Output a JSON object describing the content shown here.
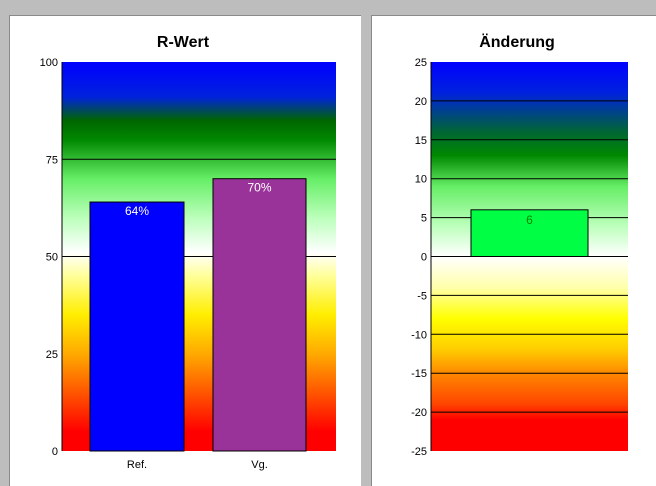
{
  "chart_data": [
    {
      "type": "bar",
      "title": "R-Wert",
      "categories": [
        "Ref.",
        "Vg."
      ],
      "values": [
        64,
        70
      ],
      "value_labels": [
        "64%",
        "70%"
      ],
      "bar_colors": [
        "#0000ff",
        "#993399"
      ],
      "ylim": [
        0,
        100
      ],
      "yticks": [
        0,
        25,
        50,
        75,
        100
      ],
      "gridlines": [
        50,
        75
      ],
      "background_gradient": [
        {
          "v": 100,
          "c": "#0000ff"
        },
        {
          "v": 91,
          "c": "#0022dd"
        },
        {
          "v": 85,
          "c": "#006600"
        },
        {
          "v": 80,
          "c": "#008800"
        },
        {
          "v": 70,
          "c": "#66ee66"
        },
        {
          "v": 60,
          "c": "#bbffbb"
        },
        {
          "v": 51,
          "c": "#ffffff"
        },
        {
          "v": 45,
          "c": "#ffff99"
        },
        {
          "v": 35,
          "c": "#ffee00"
        },
        {
          "v": 25,
          "c": "#ffaa00"
        },
        {
          "v": 15,
          "c": "#ff5500"
        },
        {
          "v": 5,
          "c": "#ff0000"
        },
        {
          "v": 0,
          "c": "#ff0000"
        }
      ]
    },
    {
      "type": "bar",
      "title": "Änderung",
      "categories": [
        ""
      ],
      "values": [
        6
      ],
      "value_labels": [
        "6"
      ],
      "bar_colors": [
        "#00ff44"
      ],
      "ylim": [
        -25,
        25
      ],
      "yticks": [
        25,
        20,
        15,
        10,
        5,
        0,
        -5,
        -10,
        -15,
        -20,
        -25
      ],
      "gridlines": [
        20,
        15,
        10,
        5,
        0,
        -5,
        -10,
        -15,
        -20
      ],
      "background_gradient": [
        {
          "v": 25,
          "c": "#0000ff"
        },
        {
          "v": 21,
          "c": "#0022dd"
        },
        {
          "v": 16,
          "c": "#006633"
        },
        {
          "v": 13,
          "c": "#008800"
        },
        {
          "v": 9,
          "c": "#66ee66"
        },
        {
          "v": 4,
          "c": "#bbffbb"
        },
        {
          "v": 0,
          "c": "#ffffff"
        },
        {
          "v": -4,
          "c": "#ffffaa"
        },
        {
          "v": -8,
          "c": "#ffff00"
        },
        {
          "v": -12,
          "c": "#ffcc00"
        },
        {
          "v": -15,
          "c": "#ff8800"
        },
        {
          "v": -19,
          "c": "#ff4400"
        },
        {
          "v": -21,
          "c": "#ff0000"
        },
        {
          "v": -25,
          "c": "#ff0000"
        }
      ]
    }
  ]
}
